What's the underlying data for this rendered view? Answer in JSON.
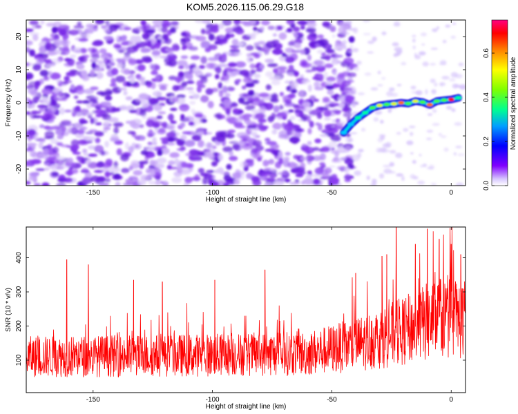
{
  "title": "KOM5.2026.115.06.29.G18",
  "chart_data": [
    {
      "type": "heatmap",
      "name": "spectrogram",
      "xlabel": "Height of straight line (km)",
      "ylabel": "Frequency (Hz)",
      "xlim": [
        -178,
        6
      ],
      "ylim": [
        -25,
        25
      ],
      "xticks": [
        -150,
        -100,
        -50,
        0
      ],
      "yticks": [
        -20,
        -10,
        0,
        10,
        20
      ],
      "xtick_labels": [
        "-150",
        "-100",
        "-50",
        "0"
      ],
      "ytick_labels": [
        "-20",
        "-10",
        "0",
        "10",
        "20"
      ],
      "colorbar": {
        "label": "Normalized spectral amplitude",
        "range": [
          0,
          0.75
        ],
        "ticks": [
          0.0,
          0.2,
          0.4,
          0.6
        ],
        "tick_labels": [
          "0.0",
          "0.2",
          "0.4",
          "0.6"
        ],
        "colors": [
          "#ffffff",
          "#8000ff",
          "#0000ff",
          "#00d0ff",
          "#00ff80",
          "#a0ff00",
          "#ffff00",
          "#ff8000",
          "#ff0000",
          "#ff0080"
        ]
      },
      "noise_region_x": [
        -178,
        -48
      ],
      "noise_level": 0.05,
      "signal_track": [
        {
          "x": -45,
          "y": -9,
          "a": 0.25
        },
        {
          "x": -42,
          "y": -6.5,
          "a": 0.3
        },
        {
          "x": -39,
          "y": -4.5,
          "a": 0.35
        },
        {
          "x": -36,
          "y": -3,
          "a": 0.4
        },
        {
          "x": -33,
          "y": -1.5,
          "a": 0.45
        },
        {
          "x": -30,
          "y": -0.8,
          "a": 0.55
        },
        {
          "x": -27,
          "y": -0.5,
          "a": 0.5
        },
        {
          "x": -24,
          "y": -0.3,
          "a": 0.55
        },
        {
          "x": -21,
          "y": 0,
          "a": 0.6
        },
        {
          "x": -18,
          "y": -0.2,
          "a": 0.5
        },
        {
          "x": -15,
          "y": 0.5,
          "a": 0.55
        },
        {
          "x": -12,
          "y": 0.2,
          "a": 0.5
        },
        {
          "x": -9,
          "y": -0.6,
          "a": 0.6
        },
        {
          "x": -6,
          "y": 0.5,
          "a": 0.45
        },
        {
          "x": -3,
          "y": 0.8,
          "a": 0.5
        },
        {
          "x": 0,
          "y": 1,
          "a": 0.7
        },
        {
          "x": 3,
          "y": 1.5,
          "a": 0.4
        }
      ]
    },
    {
      "type": "line",
      "name": "snr",
      "xlabel": "Height of straight line (km)",
      "ylabel": "SNR (10 * v/v)",
      "xlim": [
        -178,
        6
      ],
      "ylim": [
        5,
        490
      ],
      "xticks": [
        -150,
        -100,
        -50,
        0
      ],
      "yticks": [
        100,
        200,
        300,
        400
      ],
      "xtick_labels": [
        "-150",
        "-100",
        "-50",
        "0"
      ],
      "ytick_labels": [
        "100",
        "200",
        "300",
        "400"
      ],
      "line_color": "#ff0000",
      "mean_profile": [
        {
          "x": -178,
          "y": 110
        },
        {
          "x": -100,
          "y": 115
        },
        {
          "x": -60,
          "y": 120
        },
        {
          "x": -40,
          "y": 145
        },
        {
          "x": -20,
          "y": 185
        },
        {
          "x": -5,
          "y": 225
        },
        {
          "x": 6,
          "y": 220
        }
      ],
      "peaks": [
        {
          "x": -161,
          "y": 395
        },
        {
          "x": -152,
          "y": 380
        },
        {
          "x": -133,
          "y": 335
        },
        {
          "x": -121,
          "y": 330
        },
        {
          "x": -99,
          "y": 335
        },
        {
          "x": -78,
          "y": 365
        },
        {
          "x": -40,
          "y": 355
        },
        {
          "x": -29,
          "y": 405
        },
        {
          "x": -27,
          "y": 410
        },
        {
          "x": -23,
          "y": 490
        },
        {
          "x": -15,
          "y": 440
        },
        {
          "x": -10,
          "y": 485
        },
        {
          "x": -5,
          "y": 455
        },
        {
          "x": 0,
          "y": 440
        },
        {
          "x": 4,
          "y": 410
        }
      ]
    }
  ]
}
